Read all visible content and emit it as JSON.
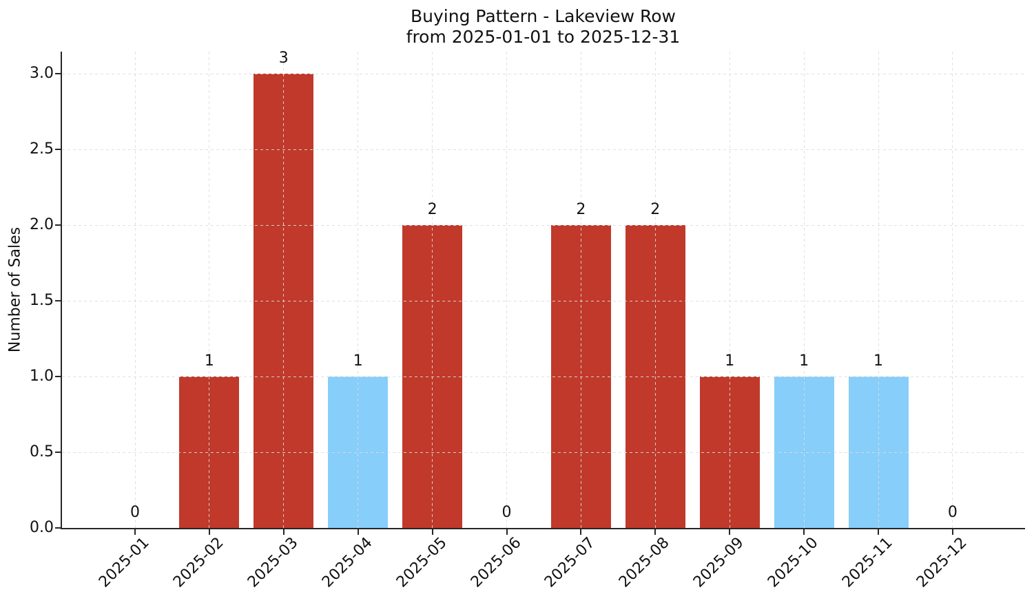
{
  "chart_data": {
    "type": "bar",
    "title": "Buying Pattern - Lakeview Row",
    "subtitle": "from 2025-01-01 to 2025-12-31",
    "xlabel": "",
    "ylabel": "Number of Sales",
    "categories": [
      "2025-01",
      "2025-02",
      "2025-03",
      "2025-04",
      "2025-05",
      "2025-06",
      "2025-07",
      "2025-08",
      "2025-09",
      "2025-10",
      "2025-11",
      "2025-12"
    ],
    "values": [
      0,
      1,
      3,
      1,
      2,
      0,
      2,
      2,
      1,
      1,
      1,
      0
    ],
    "value_labels": [
      "0",
      "1",
      "3",
      "1",
      "2",
      "0",
      "2",
      "2",
      "1",
      "1",
      "1",
      "0"
    ],
    "bar_colors": [
      null,
      "#c0392b",
      "#c0392b",
      "#87cefa",
      "#c0392b",
      null,
      "#c0392b",
      "#c0392b",
      "#c0392b",
      "#87cefa",
      "#87cefa",
      null
    ],
    "yticks": [
      0.0,
      0.5,
      1.0,
      1.5,
      2.0,
      2.5,
      3.0
    ],
    "ytick_labels": [
      "0.0",
      "0.5",
      "1.0",
      "1.5",
      "2.0",
      "2.5",
      "3.0"
    ],
    "ylim": [
      0,
      3.15
    ],
    "grid": {
      "axis": "both",
      "style": "dashed",
      "color": "#dcdcdc"
    },
    "legend": null,
    "colors": {
      "red_bar": "#c0392b",
      "blue_bar": "#87cefa",
      "axis": "#262626",
      "grid": "#dcdcdc",
      "text": "#111111",
      "background": "#ffffff"
    }
  }
}
